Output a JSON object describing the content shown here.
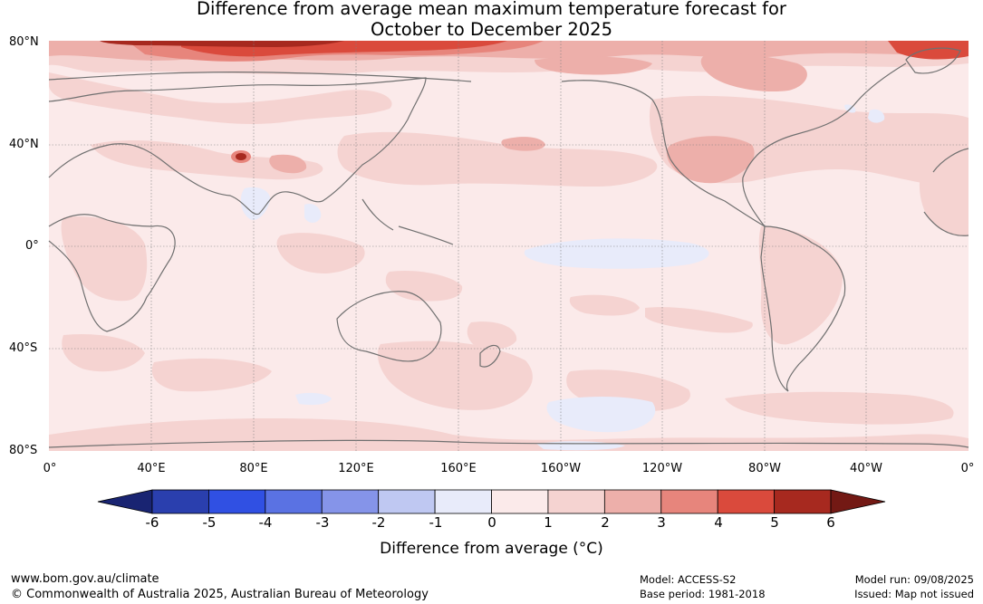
{
  "title_line1": "Difference from average mean maximum temperature forecast for",
  "title_line2": "October to December 2025",
  "map": {
    "lat_labels": [
      "80°N",
      "40°N",
      "0°",
      "40°S",
      "80°S"
    ],
    "lon_labels": [
      "0°",
      "40°E",
      "80°E",
      "120°E",
      "160°E",
      "160°W",
      "120°W",
      "80°W",
      "40°W",
      "0°"
    ]
  },
  "colorbar": {
    "ticks": [
      "-6",
      "-5",
      "-4",
      "-3",
      "-2",
      "-1",
      "0",
      "1",
      "2",
      "3",
      "4",
      "5",
      "6"
    ],
    "colors": [
      "#192472",
      "#2a3fae",
      "#3050e3",
      "#5a72e3",
      "#8594e9",
      "#bfc8f2",
      "#e8ebfa",
      "#fbeaea",
      "#f5d3d1",
      "#edafaa",
      "#e7857c",
      "#da4a3c",
      "#a7291f",
      "#731914"
    ],
    "label": "Difference from average (°C)"
  },
  "footer": {
    "url": "www.bom.gov.au/climate",
    "copyright": "© Commonwealth of Australia 2025, Australian Bureau of Meteorology",
    "model": "Model: ACCESS-S2",
    "base_period": "Base period: 1981-2018",
    "model_run": "Model run: 09/08/2025",
    "issued": "Issued: Map not issued"
  }
}
